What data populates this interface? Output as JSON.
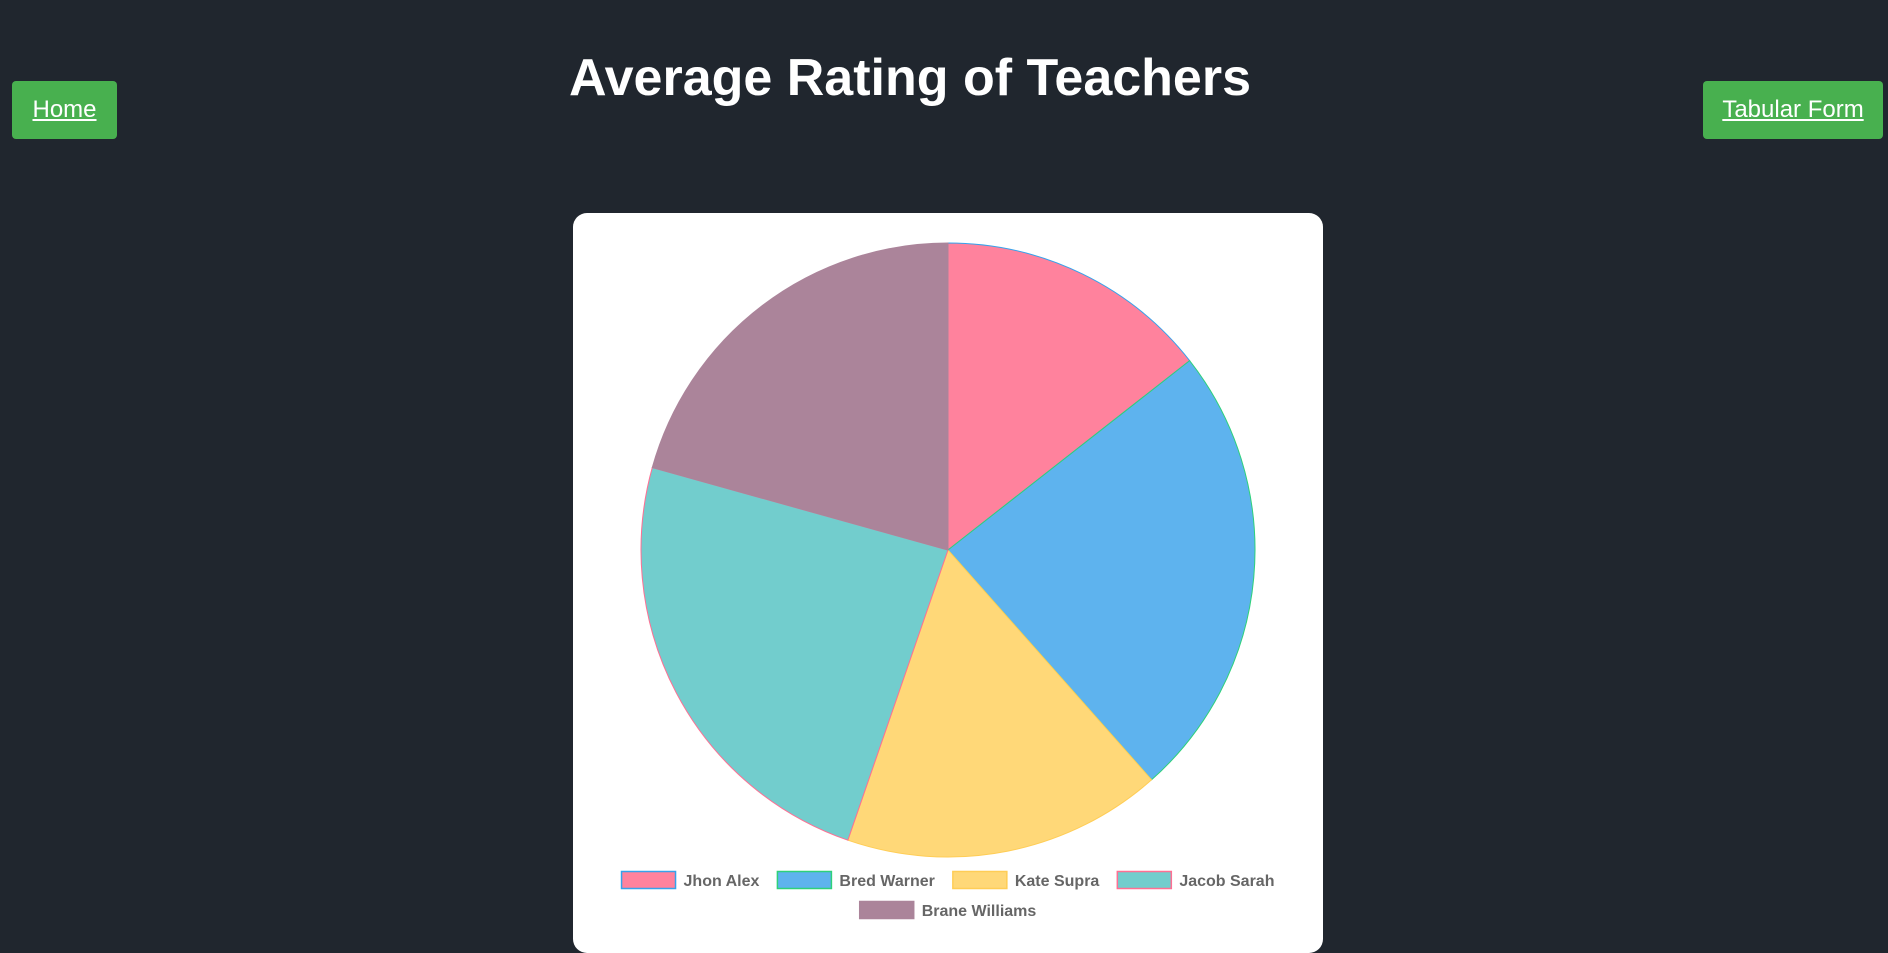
{
  "nav": {
    "home_label": "Home",
    "tabular_label": "Tabular Form"
  },
  "page": {
    "title": "Average Rating of Teachers"
  },
  "colors": {
    "background": "#20262e",
    "button": "#48b04f"
  },
  "chart_data": {
    "type": "pie",
    "title": "",
    "legend_position": "bottom",
    "series": [
      {
        "name": "Jhon Alex",
        "value": 3.0,
        "color": "#ff829d",
        "border": "#36a2eb"
      },
      {
        "name": "Bred Warner",
        "value": 5.0,
        "color": "#5eb3ee",
        "border": "#2ed17a"
      },
      {
        "name": "Kate Supra",
        "value": 3.5,
        "color": "#ffd878",
        "border": "#ffcd56"
      },
      {
        "name": "Jacob Sarah",
        "value": 5.0,
        "color": "#72cdcd",
        "border": "#ff6f93"
      },
      {
        "name": "Brane Williams",
        "value": 4.3,
        "color": "#ab849a",
        "border": "#ab849a"
      }
    ]
  }
}
